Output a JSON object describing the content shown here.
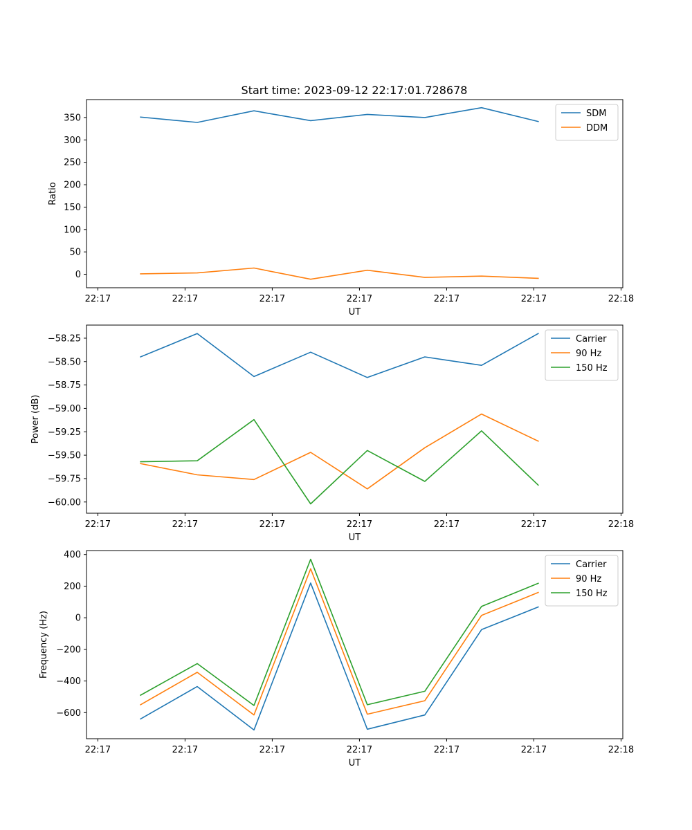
{
  "title": "Start time: 2023-09-12 22:17:01.728678",
  "chart_data": [
    {
      "type": "line",
      "title": "Start time: 2023-09-12 22:17:01.728678",
      "xlabel": "UT",
      "ylabel": "Ratio",
      "x_tick_labels": [
        "22:17",
        "22:17",
        "22:17",
        "22:17",
        "22:17",
        "22:17",
        "22:18"
      ],
      "x_ticks": [
        0,
        10,
        20,
        30,
        40,
        50,
        60
      ],
      "xlim": [
        -1.3,
        60.2
      ],
      "ylim": [
        -30,
        390
      ],
      "y_ticks": [
        0,
        50,
        100,
        150,
        200,
        250,
        300,
        350
      ],
      "y_tick_labels": [
        "0",
        "50",
        "100",
        "150",
        "200",
        "250",
        "300",
        "350"
      ],
      "legend_position": "top-right",
      "x": [
        4.9,
        11.4,
        17.9,
        24.4,
        30.9,
        37.5,
        44.0,
        50.5
      ],
      "series": [
        {
          "name": "SDM",
          "color": "#1f77b4",
          "values": [
            351,
            339,
            365,
            343,
            357,
            350,
            372,
            341
          ]
        },
        {
          "name": "DDM",
          "color": "#ff7f0e",
          "values": [
            1,
            3,
            14,
            -11,
            9,
            -7,
            -4,
            -9
          ]
        }
      ]
    },
    {
      "type": "line",
      "title": "",
      "xlabel": "UT",
      "ylabel": "Power (dB)",
      "x_tick_labels": [
        "22:17",
        "22:17",
        "22:17",
        "22:17",
        "22:17",
        "22:17",
        "22:18"
      ],
      "x_ticks": [
        0,
        10,
        20,
        30,
        40,
        50,
        60
      ],
      "xlim": [
        -1.3,
        60.2
      ],
      "ylim": [
        -60.12,
        -58.11
      ],
      "y_ticks": [
        -60.0,
        -59.75,
        -59.5,
        -59.25,
        -59.0,
        -58.75,
        -58.5,
        -58.25
      ],
      "y_tick_labels": [
        "−60.00",
        "−59.75",
        "−59.50",
        "−59.25",
        "−59.00",
        "−58.75",
        "−58.50",
        "−58.25"
      ],
      "legend_position": "top-right",
      "x": [
        4.9,
        11.4,
        17.9,
        24.4,
        30.9,
        37.5,
        44.0,
        50.5
      ],
      "series": [
        {
          "name": "Carrier",
          "color": "#1f77b4",
          "values": [
            -58.45,
            -58.2,
            -58.66,
            -58.4,
            -58.67,
            -58.45,
            -58.54,
            -58.2
          ]
        },
        {
          "name": "90 Hz",
          "color": "#ff7f0e",
          "values": [
            -59.59,
            -59.71,
            -59.76,
            -59.47,
            -59.86,
            -59.42,
            -59.06,
            -59.35
          ]
        },
        {
          "name": "150 Hz",
          "color": "#2ca02c",
          "values": [
            -59.57,
            -59.56,
            -59.12,
            -60.02,
            -59.45,
            -59.78,
            -59.24,
            -59.82
          ]
        }
      ]
    },
    {
      "type": "line",
      "title": "",
      "xlabel": "UT",
      "ylabel": "Frequency (Hz)",
      "x_tick_labels": [
        "22:17",
        "22:17",
        "22:17",
        "22:17",
        "22:17",
        "22:17",
        "22:18"
      ],
      "x_ticks": [
        0,
        10,
        20,
        30,
        40,
        50,
        60
      ],
      "xlim": [
        -1.3,
        60.2
      ],
      "ylim": [
        -765,
        425
      ],
      "y_ticks": [
        -600,
        -400,
        -200,
        0,
        200,
        400
      ],
      "y_tick_labels": [
        "−600",
        "−400",
        "−200",
        "0",
        "200",
        "400"
      ],
      "legend_position": "top-right",
      "x": [
        4.9,
        11.4,
        17.9,
        24.4,
        30.9,
        37.5,
        44.0,
        50.5
      ],
      "series": [
        {
          "name": "Carrier",
          "color": "#1f77b4",
          "values": [
            -640,
            -435,
            -710,
            220,
            -705,
            -615,
            -75,
            68
          ]
        },
        {
          "name": "90 Hz",
          "color": "#ff7f0e",
          "values": [
            -550,
            -345,
            -615,
            310,
            -610,
            -525,
            15,
            160
          ]
        },
        {
          "name": "150 Hz",
          "color": "#2ca02c",
          "values": [
            -490,
            -290,
            -555,
            370,
            -550,
            -465,
            72,
            218
          ]
        }
      ]
    }
  ]
}
